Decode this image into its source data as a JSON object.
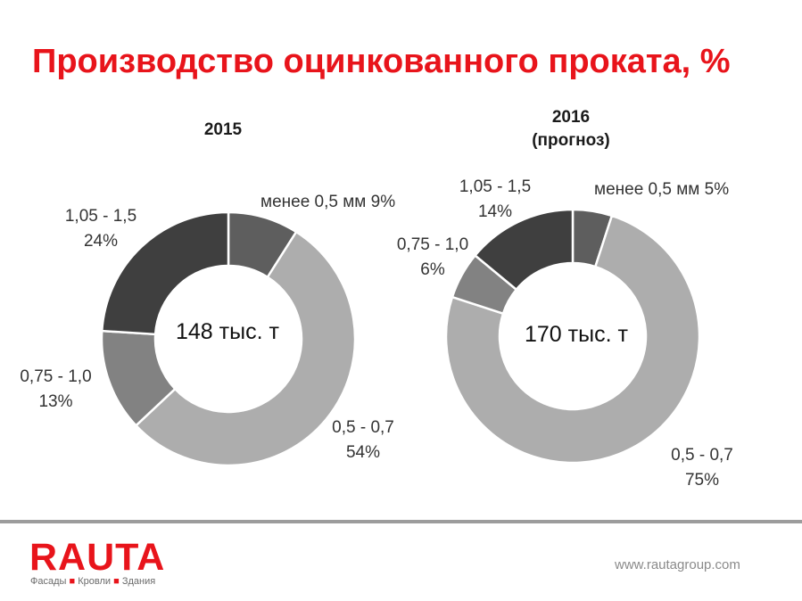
{
  "title": "Производство оцинкованного проката, %",
  "chart_data": [
    {
      "type": "pie",
      "variant": "donut",
      "title": "2015",
      "center_label": "148 тыс. т",
      "slices": [
        {
          "label": "менее 0,5 мм",
          "value": 9,
          "value_text": "9%",
          "color": "#5e5e5e"
        },
        {
          "label": "0,5 - 0,7",
          "value": 54,
          "value_text": "54%",
          "color": "#adadad"
        },
        {
          "label": "0,75 - 1,0",
          "value": 13,
          "value_text": "13%",
          "color": "#828282"
        },
        {
          "label": "1,05 - 1,5",
          "value": 24,
          "value_text": "24%",
          "color": "#3f3f3f"
        }
      ]
    },
    {
      "type": "pie",
      "variant": "donut",
      "title": "2016",
      "subtitle": "(прогноз)",
      "center_label": "170 тыс. т",
      "slices": [
        {
          "label": "менее 0,5 мм",
          "value": 5,
          "value_text": "5%",
          "color": "#5e5e5e"
        },
        {
          "label": "0,5 - 0,7",
          "value": 75,
          "value_text": "75%",
          "color": "#adadad"
        },
        {
          "label": "0,75 - 1,0",
          "value": 6,
          "value_text": "6%",
          "color": "#828282"
        },
        {
          "label": "1,05 - 1,5",
          "value": 14,
          "value_text": "14%",
          "color": "#3f3f3f"
        }
      ]
    }
  ],
  "footer": {
    "logo": "RAUTA",
    "tagline": [
      "Фасады",
      "Кровли",
      "Здания"
    ],
    "tagline_separator": "■",
    "url": "www.rautagroup.com"
  }
}
